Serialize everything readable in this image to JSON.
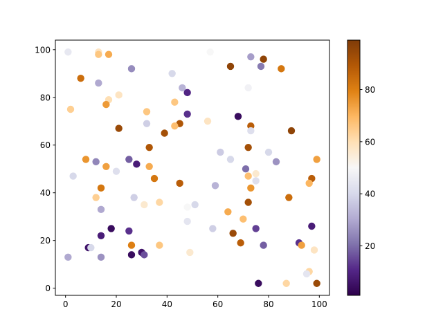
{
  "chart_data": {
    "type": "scatter",
    "title": "",
    "xlabel": "",
    "ylabel": "",
    "xlim": [
      -4,
      104
    ],
    "ylim": [
      -3,
      104
    ],
    "xticks": [
      0,
      20,
      40,
      60,
      80,
      100
    ],
    "yticks": [
      0,
      20,
      40,
      60,
      80,
      100
    ],
    "grid": false,
    "colormap": "PuOr_r",
    "colorbar": {
      "min": 1,
      "max": 99,
      "ticks": [
        20,
        40,
        60,
        80
      ],
      "label": ""
    },
    "points": [
      {
        "x": 1,
        "y": 99,
        "c": 45
      },
      {
        "x": 13,
        "y": 99,
        "c": 58
      },
      {
        "x": 13,
        "y": 98,
        "c": 66
      },
      {
        "x": 17,
        "y": 98,
        "c": 72
      },
      {
        "x": 57,
        "y": 99,
        "c": 50
      },
      {
        "x": 73,
        "y": 97,
        "c": 28
      },
      {
        "x": 78,
        "y": 96,
        "c": 96
      },
      {
        "x": 77,
        "y": 93,
        "c": 22
      },
      {
        "x": 65,
        "y": 93,
        "c": 96
      },
      {
        "x": 85,
        "y": 92,
        "c": 82
      },
      {
        "x": 26,
        "y": 92,
        "c": 25
      },
      {
        "x": 42,
        "y": 90,
        "c": 40
      },
      {
        "x": 6,
        "y": 88,
        "c": 84
      },
      {
        "x": 13,
        "y": 86,
        "c": 30
      },
      {
        "x": 46,
        "y": 84,
        "c": 32
      },
      {
        "x": 72,
        "y": 84,
        "c": 48
      },
      {
        "x": 48,
        "y": 82,
        "c": 10
      },
      {
        "x": 21,
        "y": 81,
        "c": 58
      },
      {
        "x": 17,
        "y": 79,
        "c": 60
      },
      {
        "x": 16,
        "y": 77,
        "c": 75
      },
      {
        "x": 43,
        "y": 78,
        "c": 66
      },
      {
        "x": 2,
        "y": 75,
        "c": 64
      },
      {
        "x": 32,
        "y": 74,
        "c": 66
      },
      {
        "x": 48,
        "y": 73,
        "c": 12
      },
      {
        "x": 68,
        "y": 72,
        "c": 4
      },
      {
        "x": 56,
        "y": 70,
        "c": 58
      },
      {
        "x": 32,
        "y": 69,
        "c": 38
      },
      {
        "x": 45,
        "y": 69,
        "c": 90
      },
      {
        "x": 43,
        "y": 68,
        "c": 68
      },
      {
        "x": 73,
        "y": 68,
        "c": 88
      },
      {
        "x": 21,
        "y": 67,
        "c": 94
      },
      {
        "x": 89,
        "y": 66,
        "c": 96
      },
      {
        "x": 73,
        "y": 66,
        "c": 42
      },
      {
        "x": 39,
        "y": 65,
        "c": 92
      },
      {
        "x": 33,
        "y": 59,
        "c": 90
      },
      {
        "x": 72,
        "y": 59,
        "c": 92
      },
      {
        "x": 61,
        "y": 57,
        "c": 37
      },
      {
        "x": 80,
        "y": 57,
        "c": 40
      },
      {
        "x": 8,
        "y": 54,
        "c": 76
      },
      {
        "x": 25,
        "y": 54,
        "c": 18
      },
      {
        "x": 65,
        "y": 54,
        "c": 40
      },
      {
        "x": 99,
        "y": 54,
        "c": 74
      },
      {
        "x": 12,
        "y": 53,
        "c": 24
      },
      {
        "x": 83,
        "y": 53,
        "c": 26
      },
      {
        "x": 28,
        "y": 52,
        "c": 8
      },
      {
        "x": 16,
        "y": 51,
        "c": 74
      },
      {
        "x": 33,
        "y": 51,
        "c": 72
      },
      {
        "x": 71,
        "y": 50,
        "c": 20
      },
      {
        "x": 20,
        "y": 49,
        "c": 42
      },
      {
        "x": 75,
        "y": 48,
        "c": 56
      },
      {
        "x": 3,
        "y": 47,
        "c": 40
      },
      {
        "x": 72,
        "y": 47,
        "c": 68
      },
      {
        "x": 35,
        "y": 46,
        "c": 82
      },
      {
        "x": 97,
        "y": 46,
        "c": 88
      },
      {
        "x": 75,
        "y": 45,
        "c": 42
      },
      {
        "x": 96,
        "y": 44,
        "c": 70
      },
      {
        "x": 45,
        "y": 44,
        "c": 88
      },
      {
        "x": 59,
        "y": 43,
        "c": 32
      },
      {
        "x": 14,
        "y": 42,
        "c": 82
      },
      {
        "x": 73,
        "y": 42,
        "c": 76
      },
      {
        "x": 12,
        "y": 38,
        "c": 64
      },
      {
        "x": 27,
        "y": 38,
        "c": 38
      },
      {
        "x": 88,
        "y": 38,
        "c": 84
      },
      {
        "x": 37,
        "y": 36,
        "c": 62
      },
      {
        "x": 72,
        "y": 36,
        "c": 92
      },
      {
        "x": 31,
        "y": 35,
        "c": 56
      },
      {
        "x": 51,
        "y": 35,
        "c": 40
      },
      {
        "x": 48,
        "y": 34,
        "c": 50
      },
      {
        "x": 14,
        "y": 33,
        "c": 30
      },
      {
        "x": 64,
        "y": 32,
        "c": 72
      },
      {
        "x": 70,
        "y": 29,
        "c": 68
      },
      {
        "x": 48,
        "y": 28,
        "c": 44
      },
      {
        "x": 97,
        "y": 26,
        "c": 8
      },
      {
        "x": 75,
        "y": 25,
        "c": 14
      },
      {
        "x": 58,
        "y": 25,
        "c": 38
      },
      {
        "x": 18,
        "y": 25,
        "c": 4
      },
      {
        "x": 25,
        "y": 24,
        "c": 12
      },
      {
        "x": 66,
        "y": 23,
        "c": 94
      },
      {
        "x": 14,
        "y": 22,
        "c": 8
      },
      {
        "x": 69,
        "y": 19,
        "c": 88
      },
      {
        "x": 92,
        "y": 19,
        "c": 12
      },
      {
        "x": 26,
        "y": 18,
        "c": 80
      },
      {
        "x": 37,
        "y": 18,
        "c": 66
      },
      {
        "x": 78,
        "y": 18,
        "c": 18
      },
      {
        "x": 93,
        "y": 18,
        "c": 74
      },
      {
        "x": 9,
        "y": 17,
        "c": 6
      },
      {
        "x": 10,
        "y": 17,
        "c": 40
      },
      {
        "x": 98,
        "y": 16,
        "c": 58
      },
      {
        "x": 30,
        "y": 15,
        "c": 6
      },
      {
        "x": 49,
        "y": 15,
        "c": 56
      },
      {
        "x": 26,
        "y": 14,
        "c": 4
      },
      {
        "x": 31,
        "y": 14,
        "c": 16
      },
      {
        "x": 1,
        "y": 13,
        "c": 30
      },
      {
        "x": 14,
        "y": 13,
        "c": 26
      },
      {
        "x": 96,
        "y": 7,
        "c": 62
      },
      {
        "x": 95,
        "y": 6,
        "c": 44
      },
      {
        "x": 76,
        "y": 2,
        "c": 4
      },
      {
        "x": 87,
        "y": 2,
        "c": 62
      },
      {
        "x": 99,
        "y": 2,
        "c": 94
      }
    ]
  }
}
